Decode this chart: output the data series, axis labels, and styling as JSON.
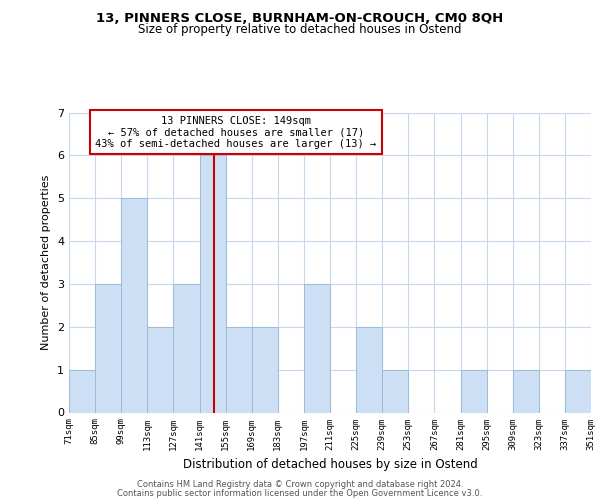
{
  "title1": "13, PINNERS CLOSE, BURNHAM-ON-CROUCH, CM0 8QH",
  "title2": "Size of property relative to detached houses in Ostend",
  "xlabel": "Distribution of detached houses by size in Ostend",
  "ylabel": "Number of detached properties",
  "bin_labels": [
    "71sqm",
    "85sqm",
    "99sqm",
    "113sqm",
    "127sqm",
    "141sqm",
    "155sqm",
    "169sqm",
    "183sqm",
    "197sqm",
    "211sqm",
    "225sqm",
    "239sqm",
    "253sqm",
    "267sqm",
    "281sqm",
    "295sqm",
    "309sqm",
    "323sqm",
    "337sqm",
    "351sqm"
  ],
  "bar_heights": [
    1,
    3,
    5,
    2,
    3,
    6,
    2,
    2,
    0,
    3,
    0,
    2,
    1,
    0,
    0,
    1,
    0,
    1,
    0,
    1
  ],
  "bar_color": "#ccdff5",
  "bar_edge_color": "#9bbcd8",
  "vline_color": "#cc0000",
  "ylim": [
    0,
    7
  ],
  "yticks": [
    0,
    1,
    2,
    3,
    4,
    5,
    6,
    7
  ],
  "annotation_title": "13 PINNERS CLOSE: 149sqm",
  "annotation_line1": "← 57% of detached houses are smaller (17)",
  "annotation_line2": "43% of semi-detached houses are larger (13) →",
  "annotation_box_color": "#ffffff",
  "annotation_border_color": "#cc0000",
  "footer1": "Contains HM Land Registry data © Crown copyright and database right 2024.",
  "footer2": "Contains public sector information licensed under the Open Government Licence v3.0.",
  "background_color": "#ffffff",
  "grid_color": "#c8d8ec"
}
